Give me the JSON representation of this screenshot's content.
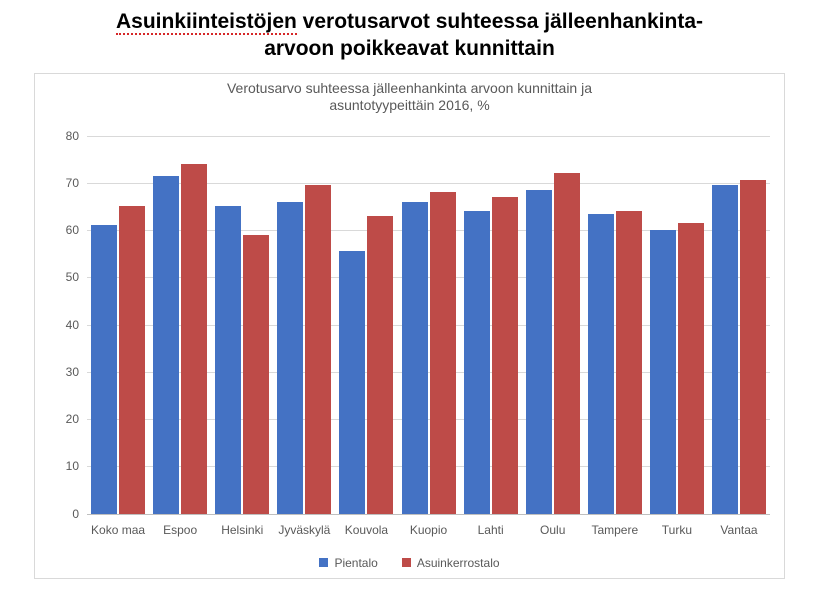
{
  "page": {
    "title_line1_pre": "Asuinkiinteistöjen",
    "title_line1_post": " verotusarvot suhteessa jälleenhankinta-",
    "title_line2": "arvoon poikkeavat kunnittain",
    "title_fontsize": 21,
    "title_color": "#000000",
    "underline_color": "#d62728"
  },
  "chart": {
    "type": "bar",
    "title_line1": "Verotusarvo suhteessa jälleenhankinta arvoon kunnittain ja",
    "title_line2": "asuntotyypeittäin  2016, %",
    "title_fontsize": 14,
    "title_color": "#595959",
    "background_color": "#ffffff",
    "border_color": "#d9d9d9",
    "grid_color": "#d9d9d9",
    "zero_line_color": "#bfbfbf",
    "categories": [
      "Koko maa",
      "Espoo",
      "Helsinki",
      "Jyväskylä",
      "Kouvola",
      "Kuopio",
      "Lahti",
      "Oulu",
      "Tampere",
      "Turku",
      "Vantaa"
    ],
    "series": [
      {
        "name": "Pientalo",
        "color": "#4472c4",
        "values": [
          61,
          71.5,
          65,
          66,
          55.5,
          66,
          64,
          68.5,
          63.5,
          60,
          69.5
        ]
      },
      {
        "name": "Asuinkerrostalo",
        "color": "#be4b48",
        "values": [
          65,
          74,
          59,
          69.5,
          63,
          68,
          67,
          72,
          64,
          61.5,
          70.5
        ]
      }
    ],
    "ylim": [
      0,
      80
    ],
    "ytick_step": 10,
    "ytick_labels": [
      "0",
      "10",
      "20",
      "30",
      "40",
      "50",
      "60",
      "70",
      "80"
    ],
    "axis_label_fontsize": 12,
    "axis_label_color": "#595959",
    "xlabel_fontsize": 12,
    "legend_fontsize": 12,
    "bar_width": 0.42
  }
}
